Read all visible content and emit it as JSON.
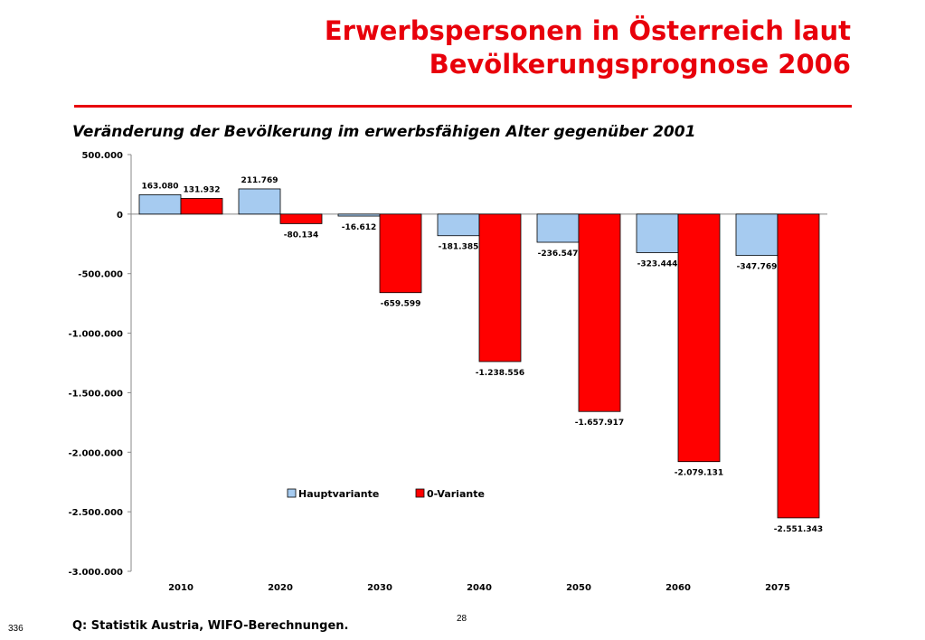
{
  "header": {
    "title_line1": "Erwerbspersonen in Österreich laut",
    "title_line2": "Bevölkerungsprognose 2006"
  },
  "footer": {
    "source": "Q: Statistik Austria, WIFO-Berechnungen.",
    "page_number": "28",
    "slide_number": "336"
  },
  "colors": {
    "accent": "#e8000b",
    "series_hauptvariante": "#a6cbf0",
    "series_nullvariante": "#ff0000"
  },
  "chart_data": {
    "type": "bar",
    "title": "Veränderung der Bevölkerung im erwerbsfähigen Alter gegenüber 2001",
    "xlabel": "",
    "ylabel": "",
    "categories": [
      "2010",
      "2020",
      "2030",
      "2040",
      "2050",
      "2060",
      "2075"
    ],
    "series": [
      {
        "name": "Hauptvariante",
        "values": [
          163080,
          211769,
          -16612,
          -181385,
          -236547,
          -323444,
          -347769
        ],
        "labels": [
          "163.080",
          "211.769",
          "-16.612",
          "-181.385",
          "-236.547",
          "-323.444",
          "-347.769"
        ]
      },
      {
        "name": "0-Variante",
        "values": [
          131932,
          -80134,
          -659599,
          -1238556,
          -1657917,
          -2079131,
          -2551343
        ],
        "labels": [
          "131.932",
          "-80.134",
          "-659.599",
          "-1.238.556",
          "-1.657.917",
          "-2.079.131",
          "-2.551.343"
        ]
      }
    ],
    "ylim": [
      -3000000,
      500000
    ],
    "yticks": [
      500000,
      0,
      -500000,
      -1000000,
      -1500000,
      -2000000,
      -2500000,
      -3000000
    ],
    "ytick_labels": [
      "500.000",
      "0",
      "-500.000",
      "-1.000.000",
      "-1.500.000",
      "-2.000.000",
      "-2.500.000",
      "-3.000.000"
    ],
    "grid": false,
    "legend_position": "center"
  }
}
